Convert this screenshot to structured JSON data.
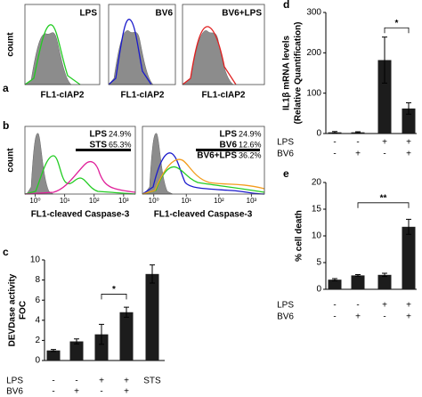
{
  "chart_data": [
    {
      "panel": "a",
      "type": "flow-histogram",
      "ylabel": "count",
      "subplots": [
        {
          "xlabel": "FL1-cIAP2",
          "series": [
            {
              "name": "LPS",
              "color": "#22cc22"
            }
          ]
        },
        {
          "xlabel": "FL1-cIAP2",
          "series": [
            {
              "name": "BV6",
              "color": "#1a1acc"
            }
          ]
        },
        {
          "xlabel": "FL1-cIAP2",
          "series": [
            {
              "name": "BV6+LPS",
              "color": "#f39c1d"
            }
          ]
        }
      ]
    },
    {
      "panel": "b",
      "type": "flow-histogram",
      "ylabel": "count",
      "xscale": "log",
      "xlim": [
        0.45,
        2500
      ],
      "xticks": [
        {
          "value": 1,
          "label": "10⁰"
        },
        {
          "value": 10,
          "label": "10¹"
        },
        {
          "value": 100,
          "label": "10²"
        },
        {
          "value": 1000,
          "label": "10³"
        }
      ],
      "subplots": [
        {
          "xlabel": "FL1-cleaved Caspase-3",
          "series": [
            {
              "name": "LPS",
              "color": "#22cc22",
              "values": [
                24.9
              ],
              "value_labels": [
                "24.9%"
              ]
            },
            {
              "name": "STS",
              "color": "#e0209a",
              "values": [
                65.3
              ],
              "value_labels": [
                "65.3%"
              ]
            }
          ]
        },
        {
          "xlabel": "FL1-cleaved Caspase-3",
          "series": [
            {
              "name": "LPS",
              "color": "#22cc22",
              "values": [
                24.9
              ],
              "value_labels": [
                "24.9%"
              ]
            },
            {
              "name": "BV6",
              "color": "#1a1acc",
              "values": [
                12.6
              ],
              "value_labels": [
                "12.6%"
              ]
            },
            {
              "name": "BV6+LPS",
              "color": "#f39c1d",
              "values": [
                36.2
              ],
              "value_labels": [
                "36.2%"
              ]
            }
          ]
        }
      ]
    },
    {
      "panel": "c",
      "type": "bar",
      "ylabel": [
        "DEVDase activity",
        "FOC"
      ],
      "color": "#1c1c1c",
      "conditions": [
        {
          "name": "LPS",
          "values": [
            "-",
            "-",
            "+",
            "+",
            "STS"
          ]
        },
        {
          "name": "BV6",
          "values": [
            "-",
            "+",
            "-",
            "+",
            null
          ]
        }
      ],
      "values": [
        1,
        1.9,
        2.6,
        4.8,
        8.6
      ],
      "errors": [
        0.1,
        0.25,
        1.0,
        0.5,
        0.9
      ],
      "ylim": [
        0,
        10
      ],
      "yticks": [
        0,
        2,
        4,
        6,
        8,
        10
      ],
      "annotations": [
        "*"
      ]
    },
    {
      "panel": "d",
      "type": "bar",
      "ylabel": [
        "IL1β mRNA levels",
        "(Relative Quantification)"
      ],
      "color": "#1c1c1c",
      "conditions": [
        {
          "name": "LPS",
          "values": [
            "-",
            "-",
            "+",
            "+"
          ]
        },
        {
          "name": "BV6",
          "values": [
            "-",
            "+",
            "-",
            "+"
          ]
        }
      ],
      "values": [
        3,
        3,
        182,
        62
      ],
      "errors": [
        2,
        1.5,
        57,
        14
      ],
      "ylim": [
        0,
        300
      ],
      "yticks": [
        0,
        100,
        200,
        300
      ],
      "annotations": [
        "*"
      ]
    },
    {
      "panel": "e",
      "type": "bar",
      "ylabel": [
        "% cell death"
      ],
      "color": "#1c1c1c",
      "conditions": [
        {
          "name": "LPS",
          "values": [
            "-",
            "-",
            "+",
            "+"
          ]
        },
        {
          "name": "BV6",
          "values": [
            "-",
            "+",
            "-",
            "+"
          ]
        }
      ],
      "values": [
        1.8,
        2.6,
        2.7,
        11.7
      ],
      "errors": [
        0.2,
        0.15,
        0.3,
        1.4
      ],
      "ylim": [
        0,
        20
      ],
      "yticks": [
        0,
        5,
        10,
        15,
        20
      ],
      "annotations": [
        "**"
      ]
    }
  ]
}
